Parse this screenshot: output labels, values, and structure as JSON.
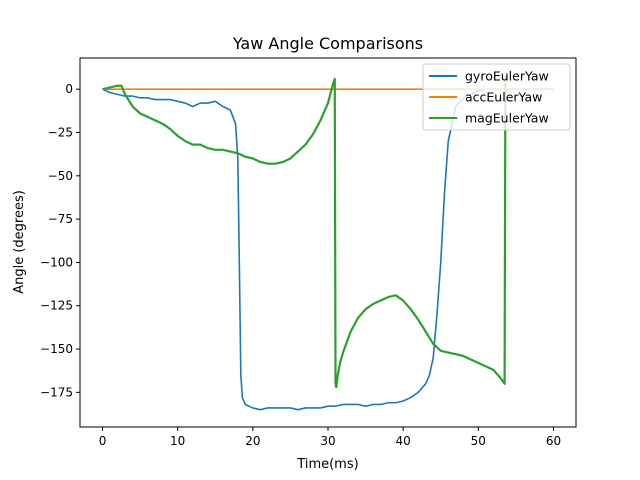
{
  "chart_data": {
    "type": "line",
    "title": "Yaw Angle Comparisons",
    "xlabel": "Time(ms)",
    "ylabel": "Angle (degrees)",
    "xlim": [
      -3,
      63
    ],
    "ylim": [
      -195,
      18
    ],
    "xticks": [
      0,
      10,
      20,
      30,
      40,
      50,
      60
    ],
    "yticks": [
      0,
      -25,
      -50,
      -75,
      -100,
      -125,
      -150,
      -175
    ],
    "grid": false,
    "legend_position": "top-right",
    "series": [
      {
        "name": "gyroEulerYaw",
        "color": "#1f77b4",
        "x": [
          0,
          1,
          2,
          3,
          4,
          5,
          6,
          7,
          8,
          9,
          10,
          11,
          12,
          13,
          14,
          15,
          16,
          17,
          17.7,
          18,
          18.2,
          18.4,
          18.6,
          19,
          19.5,
          20,
          21,
          22,
          23,
          24,
          25,
          26,
          27,
          28,
          29,
          30,
          31,
          32,
          33,
          34,
          35,
          36,
          37,
          38,
          39,
          40,
          41,
          42,
          43,
          43.5,
          44,
          44.5,
          45,
          45.5,
          46,
          47,
          48,
          49,
          50,
          51,
          52,
          53,
          54,
          55,
          56,
          57,
          58,
          59,
          60
        ],
        "y": [
          0,
          -2,
          -3,
          -4,
          -4,
          -5,
          -5,
          -6,
          -6,
          -6,
          -7,
          -8,
          -10,
          -8,
          -8,
          -7,
          -10,
          -12,
          -20,
          -40,
          -100,
          -165,
          -178,
          -182,
          -183,
          -184,
          -185,
          -184,
          -184,
          -184,
          -184,
          -185,
          -184,
          -184,
          -184,
          -183,
          -183,
          -182,
          -182,
          -182,
          -183,
          -182,
          -182,
          -181,
          -181,
          -180,
          -178,
          -175,
          -170,
          -165,
          -155,
          -130,
          -100,
          -60,
          -30,
          -10,
          -5,
          -3,
          -1,
          0,
          0,
          0,
          0,
          0,
          0,
          0,
          0,
          0,
          0
        ]
      },
      {
        "name": "accEulerYaw",
        "color": "#ff7f0e",
        "x": [
          0,
          60
        ],
        "y": [
          0,
          0
        ]
      },
      {
        "name": "magEulerYaw",
        "color": "#2ca02c",
        "x": [
          0,
          1,
          2,
          2.5,
          3,
          4,
          5,
          6,
          7,
          8,
          9,
          10,
          11,
          12,
          13,
          14,
          15,
          16,
          17,
          18,
          19,
          20,
          21,
          22,
          23,
          24,
          25,
          26,
          27,
          28,
          29,
          30,
          30.6,
          30.9,
          31.0,
          31.1,
          31.3,
          31.6,
          32,
          33,
          34,
          35,
          36,
          37,
          38,
          39,
          40,
          41,
          42,
          43,
          44,
          45,
          46,
          47,
          48,
          49,
          50,
          51,
          52,
          53,
          53.5,
          53.6,
          53.7
        ],
        "y": [
          0,
          1,
          2,
          2,
          -3,
          -10,
          -14,
          -16,
          -18,
          -20,
          -23,
          -27,
          -30,
          -32,
          -32,
          -34,
          -35,
          -35,
          -36,
          -37,
          -39,
          -40,
          -42,
          -43,
          -43,
          -42,
          -40,
          -36,
          -32,
          -26,
          -18,
          -8,
          2,
          6,
          -170,
          -172,
          -165,
          -158,
          -152,
          -140,
          -132,
          -127,
          -124,
          -122,
          -120,
          -119,
          -122,
          -127,
          -133,
          -140,
          -147,
          -151,
          -152,
          -153,
          -154,
          -156,
          -158,
          -160,
          -162,
          -167,
          -170,
          6,
          8
        ]
      }
    ]
  }
}
